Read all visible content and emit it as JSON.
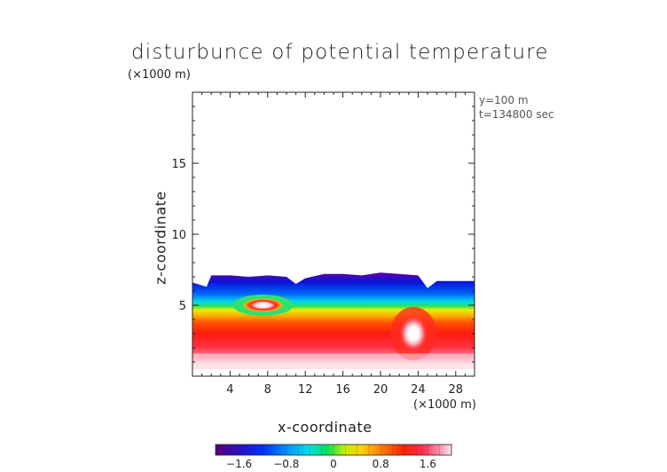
{
  "chart_data": {
    "type": "heatmap",
    "title": "disturbunce of potential temperature",
    "xlabel": "x-coordinate",
    "ylabel": "z-coordinate",
    "x_scale_note": "(×1000 m)",
    "z_scale_note": "(×1000 m)",
    "annotations": [
      "y=100  m",
      "t=134800 sec"
    ],
    "xlim": [
      0,
      30
    ],
    "ylim": [
      0,
      20
    ],
    "x_ticks": [
      4,
      8,
      12,
      16,
      20,
      24,
      28
    ],
    "y_ticks": [
      5,
      10,
      15
    ],
    "colorbar": {
      "range": [
        -2.0,
        2.0
      ],
      "tick_values": [
        -1.6,
        -0.8,
        0,
        0.8,
        1.6
      ],
      "tick_labels": [
        "−1.6",
        "−0.8",
        "0",
        "0.8",
        "1.6"
      ],
      "colors": [
        "#5a0078",
        "#2a10c0",
        "#0030ff",
        "#0090ff",
        "#00e0e0",
        "#00e060",
        "#c8f000",
        "#ffd000",
        "#ff8000",
        "#ff2000",
        "#ff3050",
        "#ff90a8",
        "#ffe6ee"
      ]
    },
    "field_description": "Positive (warm) anomaly near the surface, maximum in a bubble around x=23.5, z=3; negative (cold) layer near z=6–7 capped at the top of the boundary layer; white (undefined) above ~7 km.",
    "layer_top_km": {
      "x": [
        0,
        1.5,
        2,
        4,
        6,
        8,
        10,
        11,
        12,
        14,
        16,
        18,
        20,
        22,
        24,
        25,
        26,
        27,
        28,
        30
      ],
      "z": [
        6.6,
        6.3,
        7.1,
        7.1,
        7.0,
        7.1,
        7.0,
        6.5,
        6.9,
        7.2,
        7.2,
        7.1,
        7.3,
        7.2,
        7.1,
        6.2,
        6.7,
        6.7,
        6.7,
        6.7
      ]
    },
    "warm_bubble": {
      "x": 23.5,
      "z": 3.0
    },
    "cold_pocket": {
      "x": 7.5,
      "z": 5.0
    }
  }
}
